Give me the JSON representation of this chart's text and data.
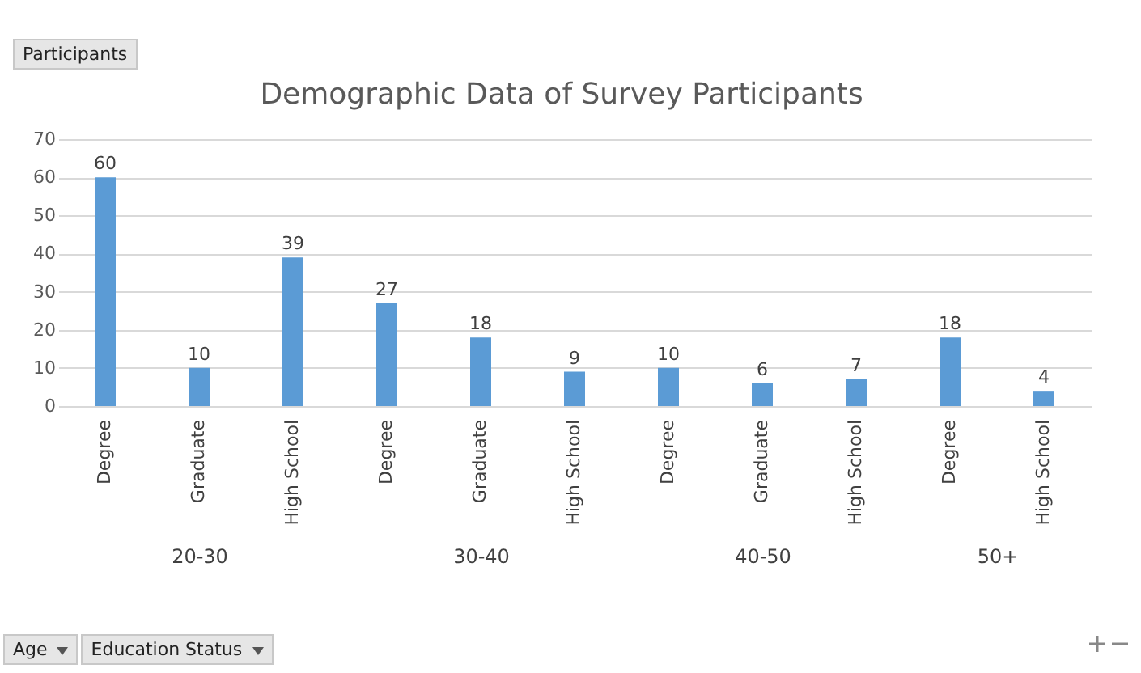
{
  "chart_data": [
    {
      "type": "bar",
      "title": "Demographic Data of Survey Participants",
      "annotations": [
        "Participants",
        "Age",
        "Education Status"
      ],
      "xlabel": "20-30",
      "categories": [
        "Degree",
        "Graduate",
        "High School"
      ],
      "values": [
        60,
        10,
        39
      ],
      "color": "#5b9bd5",
      "ylim": [
        0,
        70
      ],
      "yticks": [
        0,
        10,
        20,
        30,
        40,
        50,
        60,
        70
      ],
      "grid": "y",
      "data_labels": true
    },
    {
      "type": "bar",
      "xlabel": "30-40",
      "categories": [
        "Degree",
        "Graduate",
        "High School"
      ],
      "values": [
        27,
        18,
        9
      ],
      "color": "#5b9bd5",
      "ylim": [
        0,
        70
      ],
      "yticks": [
        0,
        10,
        20,
        30,
        40,
        50,
        60,
        70
      ],
      "grid": "y",
      "data_labels": true,
      "tick_labels": "x"
    },
    {
      "type": "bar",
      "xlabel": "40-50",
      "categories": [
        "Degree",
        "Graduate",
        "High School"
      ],
      "values": [
        10,
        6,
        7
      ],
      "color": "#5b9bd5",
      "ylim": [
        0,
        70
      ],
      "yticks": [
        0,
        10,
        20,
        30,
        40,
        50,
        60,
        70
      ],
      "grid": "y",
      "data_labels": true,
      "tick_labels": "x"
    },
    {
      "type": "bar",
      "xlabel": "50+",
      "categories": [
        "Degree",
        "High School"
      ],
      "values": [
        18,
        4
      ],
      "color": "#5b9bd5",
      "ylim": [
        0,
        70
      ],
      "yticks": [
        0,
        10,
        20,
        30,
        40,
        50,
        60,
        70
      ],
      "grid": "y",
      "data_labels": true,
      "tick_labels": "x"
    }
  ]
}
